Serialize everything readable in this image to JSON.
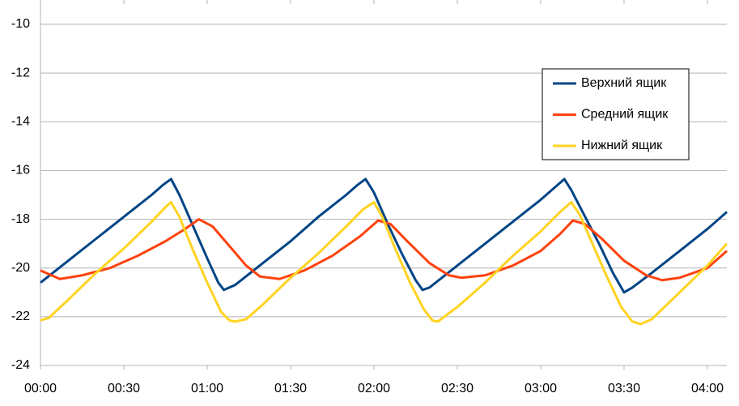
{
  "chart_data": {
    "type": "line",
    "xlim": [
      0,
      247
    ],
    "xticks": [
      {
        "value": 0,
        "label": "00:00"
      },
      {
        "value": 30,
        "label": "00:30"
      },
      {
        "value": 60,
        "label": "01:00"
      },
      {
        "value": 90,
        "label": "01:30"
      },
      {
        "value": 120,
        "label": "02:00"
      },
      {
        "value": 150,
        "label": "02:30"
      },
      {
        "value": 180,
        "label": "03:00"
      },
      {
        "value": 210,
        "label": "03:30"
      },
      {
        "value": 240,
        "label": "04:00"
      }
    ],
    "ylim": [
      -24,
      -10
    ],
    "yticks": [
      -24,
      -22,
      -20,
      -18,
      -16,
      -14,
      -12,
      -10
    ],
    "grid": true,
    "legend": "upper-right",
    "series": [
      {
        "name": "Верхний ящик",
        "color": "#004586",
        "x": [
          0,
          10,
          20,
          30,
          40,
          44,
          47,
          50,
          55,
          60,
          64,
          66,
          70,
          80,
          90,
          100,
          110,
          114,
          117,
          120,
          125,
          130,
          135,
          137.5,
          140,
          150,
          160,
          170,
          180,
          185,
          188.5,
          191,
          196,
          201,
          206,
          210,
          213,
          220,
          230,
          240,
          247
        ],
        "values": [
          -20.6,
          -19.7,
          -18.8,
          -17.9,
          -17.0,
          -16.6,
          -16.35,
          -17.0,
          -18.3,
          -19.6,
          -20.6,
          -20.9,
          -20.7,
          -19.8,
          -18.9,
          -17.9,
          -17.0,
          -16.6,
          -16.35,
          -16.9,
          -18.2,
          -19.4,
          -20.5,
          -20.9,
          -20.8,
          -19.9,
          -19.0,
          -18.1,
          -17.2,
          -16.7,
          -16.35,
          -16.8,
          -17.9,
          -19.0,
          -20.2,
          -21.0,
          -20.8,
          -20.2,
          -19.3,
          -18.4,
          -17.7
        ]
      },
      {
        "name": "Средний ящик",
        "color": "#ff420e",
        "x": [
          0,
          7,
          15,
          25,
          35,
          45,
          52,
          57,
          62,
          68,
          74,
          79,
          86,
          95,
          105,
          115,
          121.5,
          126,
          132,
          140,
          147,
          151.5,
          160,
          170,
          180,
          187,
          191.6,
          196,
          202,
          210,
          218,
          223.7,
          230,
          240,
          247
        ],
        "values": [
          -20.1,
          -20.45,
          -20.3,
          -20.0,
          -19.5,
          -18.9,
          -18.4,
          -18.0,
          -18.3,
          -19.1,
          -19.9,
          -20.35,
          -20.45,
          -20.1,
          -19.5,
          -18.7,
          -18.05,
          -18.2,
          -18.9,
          -19.8,
          -20.3,
          -20.4,
          -20.3,
          -19.9,
          -19.3,
          -18.6,
          -18.05,
          -18.2,
          -18.8,
          -19.7,
          -20.3,
          -20.5,
          -20.4,
          -20.0,
          -19.3
        ]
      },
      {
        "name": "Нижний ящик",
        "color": "#ffd320",
        "x": [
          0,
          3,
          10,
          20,
          30,
          40,
          45,
          47,
          50,
          55,
          60,
          65,
          68,
          70,
          74,
          80,
          90,
          100,
          110,
          116,
          120,
          123,
          128,
          133,
          138,
          141,
          143,
          150,
          160,
          170,
          180,
          187,
          191,
          194,
          199,
          204,
          209,
          213,
          216,
          220,
          230,
          240,
          247
        ],
        "values": [
          -22.15,
          -22.05,
          -21.3,
          -20.2,
          -19.2,
          -18.1,
          -17.5,
          -17.3,
          -17.9,
          -19.3,
          -20.6,
          -21.8,
          -22.15,
          -22.2,
          -22.1,
          -21.5,
          -20.4,
          -19.4,
          -18.3,
          -17.6,
          -17.3,
          -17.9,
          -19.3,
          -20.6,
          -21.7,
          -22.15,
          -22.2,
          -21.6,
          -20.6,
          -19.5,
          -18.5,
          -17.7,
          -17.3,
          -17.8,
          -19.1,
          -20.4,
          -21.6,
          -22.2,
          -22.3,
          -22.1,
          -21.0,
          -19.9,
          -19.0
        ]
      }
    ]
  }
}
